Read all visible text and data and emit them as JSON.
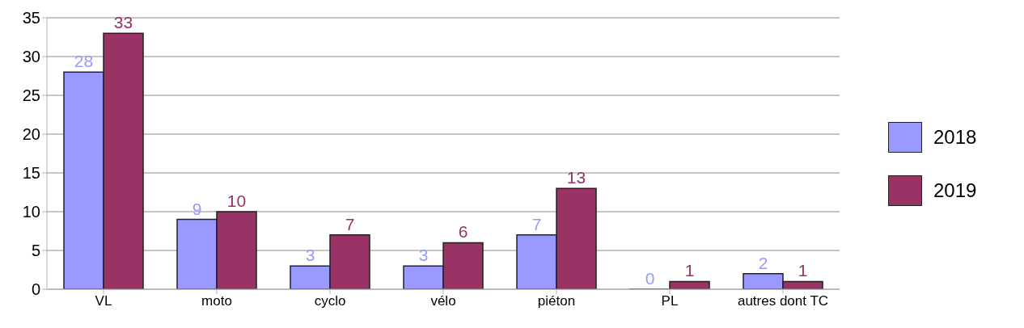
{
  "chart_data": {
    "type": "bar",
    "categories": [
      "VL",
      "moto",
      "cyclo",
      "vélo",
      "piéton",
      "PL",
      "autres dont TC"
    ],
    "series": [
      {
        "name": "2018",
        "color": "#9999ff",
        "values": [
          28,
          9,
          3,
          3,
          7,
          0,
          2
        ]
      },
      {
        "name": "2019",
        "color": "#993366",
        "values": [
          33,
          10,
          7,
          6,
          13,
          1,
          1
        ]
      }
    ],
    "ylim": [
      0,
      35
    ],
    "yticks": [
      0,
      5,
      10,
      15,
      20,
      25,
      30,
      35
    ],
    "grid": "y",
    "legend": "right",
    "data_labels": true
  }
}
